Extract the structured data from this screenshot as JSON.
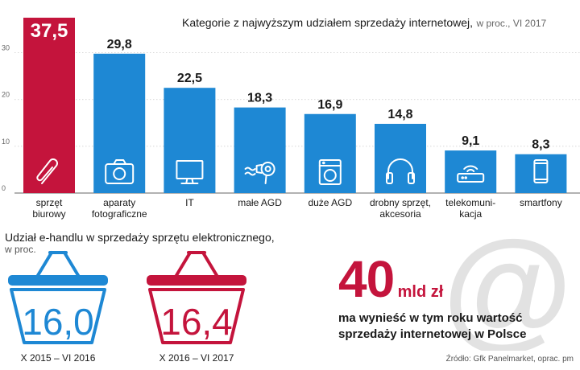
{
  "colors": {
    "blue": "#1e88d4",
    "red": "#c4143c",
    "axis": "#666666",
    "grid": "#c9c9c9",
    "at_sign": "#e2e2e2"
  },
  "header": {
    "title": "Kategorie z najwyższym udziałem sprzedaży internetowej,",
    "subtitle": "w proc., VI 2017"
  },
  "chart_data": [
    {
      "type": "bar",
      "title": "Kategorie z najwyższym udziałem sprzedaży internetowej, w proc., VI 2017",
      "categories": [
        [
          "sprzęt",
          "biurowy"
        ],
        [
          "aparaty",
          "fotograficzne"
        ],
        [
          "IT"
        ],
        [
          "małe AGD"
        ],
        [
          "duże AGD"
        ],
        [
          "drobny sprzęt,",
          "akcesoria"
        ],
        [
          "telekomuni-",
          "kacja"
        ],
        [
          "smartfony"
        ]
      ],
      "values": [
        37.5,
        29.8,
        22.5,
        18.3,
        16.9,
        14.8,
        9.1,
        8.3
      ],
      "value_labels": [
        "37,5",
        "29,8",
        "22,5",
        "18,3",
        "16,9",
        "14,8",
        "9,1",
        "8,3"
      ],
      "icons": [
        "paperclip-icon",
        "camera-icon",
        "monitor-icon",
        "hairdryer-icon",
        "washing-machine-icon",
        "headphones-icon",
        "router-icon",
        "smartphone-icon"
      ],
      "highlight_index": 0,
      "ylim": [
        0,
        37.5
      ],
      "yticks": [
        0,
        10,
        20,
        30
      ],
      "grid": true
    },
    {
      "type": "bar",
      "title": "Udział e-handlu w sprzedaży sprzętu elektronicznego, w proc.",
      "categories": [
        "X 2015 – VI 2016",
        "X 2016 – VI 2017"
      ],
      "values": [
        16.0,
        16.4
      ],
      "value_labels": [
        "16,0",
        "16,4"
      ]
    }
  ],
  "ehandel": {
    "title": "Udział e-handlu w sprzedaży sprzętu elektronicznego,",
    "subtitle": "w proc.",
    "baskets": [
      {
        "value": "16,0",
        "label": "X 2015 – VI 2016",
        "color": "#1e88d4"
      },
      {
        "value": "16,4",
        "label": "X 2016 – VI 2017",
        "color": "#c4143c"
      }
    ]
  },
  "highlight": {
    "number": "40",
    "unit": "mld zł",
    "line1": "ma wynieść w tym roku wartość",
    "line2": "sprzedaży internetowej w Polsce",
    "decoration": "@"
  },
  "source": "Źródło: Gfk Panelmarket, oprac. pm"
}
